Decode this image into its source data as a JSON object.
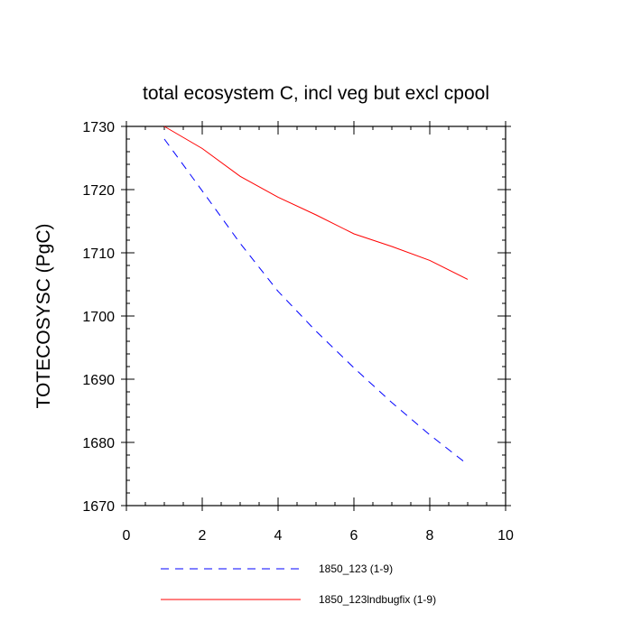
{
  "chart_data": {
    "type": "line",
    "title": "total ecosystem C, incl veg but excl cpool",
    "xlabel": "",
    "ylabel": "TOTECOSYSC  (PgC)",
    "xlim": [
      0,
      10
    ],
    "ylim": [
      1670,
      1730
    ],
    "x_ticks": [
      0,
      2,
      4,
      6,
      8,
      10
    ],
    "y_ticks": [
      1670,
      1680,
      1690,
      1700,
      1710,
      1720,
      1730
    ],
    "grid": false,
    "legend_position": "bottom",
    "series": [
      {
        "name": "1850_123 (1-9)",
        "color": "#0000ff",
        "line_style": "dashed",
        "x": [
          1,
          2,
          3,
          4,
          5,
          6,
          7,
          8,
          9
        ],
        "y": [
          1728.0,
          1719.8,
          1711.5,
          1703.9,
          1697.6,
          1691.8,
          1686.3,
          1681.2,
          1676.5
        ]
      },
      {
        "name": "1850_123lndbugfix (1-9)",
        "color": "#ff0000",
        "line_style": "solid",
        "x": [
          1,
          2,
          3,
          4,
          5,
          6,
          7,
          8,
          9
        ],
        "y": [
          1730.0,
          1726.5,
          1722.1,
          1718.8,
          1716.0,
          1713.0,
          1711.0,
          1708.8,
          1705.8
        ]
      }
    ]
  }
}
